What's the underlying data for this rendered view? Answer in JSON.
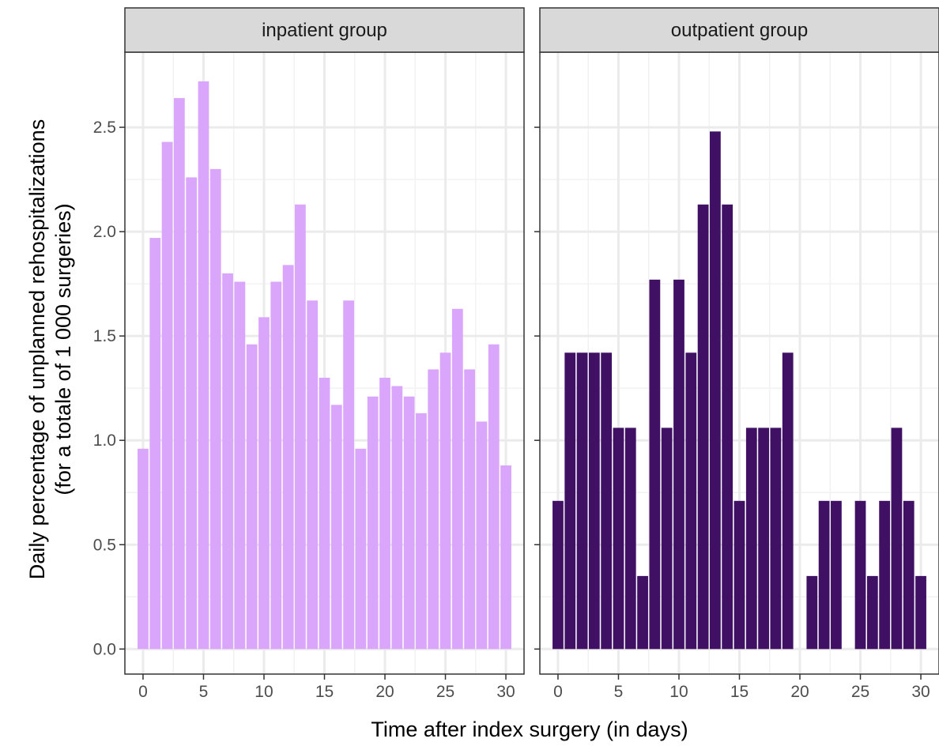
{
  "chart_data": {
    "type": "bar",
    "facet_variable": "group",
    "xlabel": "Time after index surgery (in days)",
    "ylabel_lines": [
      "Daily percentage of unplanned rehospitalizations",
      "(for a totale of 1 000 surgeries)"
    ],
    "xlim": [
      -1.5,
      31.5
    ],
    "ylim": [
      -0.12,
      2.86
    ],
    "x_ticks": [
      0,
      5,
      10,
      15,
      20,
      25,
      30
    ],
    "y_ticks": [
      "0.0",
      "0.5",
      "1.0",
      "1.5",
      "2.0",
      "2.5"
    ],
    "grid": true,
    "legend": "none",
    "panels": [
      {
        "label": "inpatient group",
        "color": "#DAA6FB",
        "x": [
          0,
          1,
          2,
          3,
          4,
          5,
          6,
          7,
          8,
          9,
          10,
          11,
          12,
          13,
          14,
          15,
          16,
          17,
          18,
          19,
          20,
          21,
          22,
          23,
          24,
          25,
          26,
          27,
          28,
          29,
          30
        ],
        "values": [
          0.96,
          1.97,
          2.43,
          2.64,
          2.26,
          2.72,
          2.3,
          1.8,
          1.76,
          1.46,
          1.59,
          1.76,
          1.84,
          2.13,
          1.67,
          1.3,
          1.17,
          1.67,
          0.96,
          1.21,
          1.3,
          1.26,
          1.21,
          1.13,
          1.34,
          1.42,
          1.63,
          1.34,
          1.09,
          1.46,
          0.88
        ]
      },
      {
        "label": "outpatient group",
        "color": "#3F1064",
        "x": [
          0,
          1,
          2,
          3,
          4,
          5,
          6,
          7,
          8,
          9,
          10,
          11,
          12,
          13,
          14,
          15,
          16,
          17,
          18,
          19,
          20,
          21,
          22,
          23,
          24,
          25,
          26,
          27,
          28,
          29,
          30
        ],
        "values": [
          0.71,
          1.42,
          1.42,
          1.42,
          1.42,
          1.06,
          1.06,
          0.35,
          1.77,
          1.06,
          1.77,
          1.42,
          2.13,
          2.48,
          2.13,
          0.71,
          1.06,
          1.06,
          1.06,
          1.42,
          0,
          0.35,
          0.71,
          0.71,
          0,
          0.71,
          0.35,
          0.71,
          1.06,
          0.71,
          0.35
        ]
      }
    ]
  }
}
